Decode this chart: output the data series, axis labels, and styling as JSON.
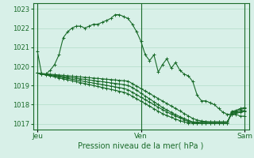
{
  "title": "",
  "xlabel": "Pression niveau de la mer( hPa )",
  "ylabel": "",
  "bg_color": "#d8f0e8",
  "grid_color": "#b0ddc8",
  "line_color": "#1a6b2a",
  "yticks": [
    1017,
    1018,
    1019,
    1020,
    1021,
    1022,
    1023
  ],
  "ylim": [
    1016.7,
    1023.3
  ],
  "xtick_labels": [
    "Jeu",
    "Ven",
    "Sam"
  ],
  "xtick_positions": [
    0,
    48,
    96
  ],
  "xlim": [
    -2,
    98
  ],
  "vlines": [
    0,
    48,
    96
  ],
  "series": [
    [
      1020.8,
      1019.6,
      1019.6,
      1019.8,
      1020.1,
      1020.6,
      1021.5,
      1021.8,
      1022.0,
      1022.1,
      1022.1,
      1022.0,
      1022.1,
      1022.2,
      1022.2,
      1022.3,
      1022.4,
      1022.5,
      1022.7,
      1022.7,
      1022.6,
      1022.5,
      1022.2,
      1021.8,
      1021.3,
      1020.6,
      1020.3,
      1020.6,
      1019.7,
      1020.1,
      1020.4,
      1019.9,
      1020.2,
      1019.8,
      1019.6,
      1019.5,
      1019.2,
      1018.5,
      1018.2,
      1018.2,
      1018.1,
      1018.0,
      1017.8,
      1017.6,
      1017.5,
      1017.5,
      1017.5,
      1017.4,
      1017.4
    ],
    [
      1019.65,
      1019.63,
      1019.61,
      1019.59,
      1019.57,
      1019.55,
      1019.53,
      1019.51,
      1019.49,
      1019.47,
      1019.45,
      1019.43,
      1019.41,
      1019.39,
      1019.37,
      1019.35,
      1019.33,
      1019.31,
      1019.29,
      1019.27,
      1019.25,
      1019.23,
      1019.1,
      1018.97,
      1018.84,
      1018.71,
      1018.58,
      1018.45,
      1018.32,
      1018.19,
      1018.06,
      1017.93,
      1017.8,
      1017.67,
      1017.54,
      1017.41,
      1017.28,
      1017.2,
      1017.15,
      1017.12,
      1017.1,
      1017.1,
      1017.1,
      1017.1,
      1017.1,
      1017.5,
      1017.55,
      1017.6,
      1017.65
    ],
    [
      1019.65,
      1019.62,
      1019.59,
      1019.56,
      1019.53,
      1019.5,
      1019.47,
      1019.44,
      1019.41,
      1019.38,
      1019.35,
      1019.32,
      1019.29,
      1019.26,
      1019.23,
      1019.2,
      1019.17,
      1019.14,
      1019.11,
      1019.08,
      1019.05,
      1019.0,
      1018.9,
      1018.75,
      1018.6,
      1018.45,
      1018.3,
      1018.15,
      1018.0,
      1017.85,
      1017.72,
      1017.6,
      1017.48,
      1017.38,
      1017.28,
      1017.18,
      1017.1,
      1017.1,
      1017.1,
      1017.1,
      1017.1,
      1017.1,
      1017.1,
      1017.1,
      1017.1,
      1017.55,
      1017.6,
      1017.65,
      1017.7
    ],
    [
      1019.65,
      1019.61,
      1019.57,
      1019.53,
      1019.49,
      1019.45,
      1019.41,
      1019.37,
      1019.33,
      1019.29,
      1019.25,
      1019.21,
      1019.17,
      1019.13,
      1019.09,
      1019.05,
      1019.01,
      1018.97,
      1018.93,
      1018.89,
      1018.85,
      1018.78,
      1018.65,
      1018.52,
      1018.39,
      1018.26,
      1018.13,
      1018.0,
      1017.87,
      1017.74,
      1017.62,
      1017.51,
      1017.41,
      1017.31,
      1017.21,
      1017.13,
      1017.07,
      1017.05,
      1017.04,
      1017.04,
      1017.04,
      1017.04,
      1017.04,
      1017.04,
      1017.04,
      1017.6,
      1017.65,
      1017.75,
      1017.8
    ],
    [
      1019.65,
      1019.6,
      1019.55,
      1019.5,
      1019.45,
      1019.4,
      1019.35,
      1019.3,
      1019.25,
      1019.2,
      1019.15,
      1019.1,
      1019.05,
      1019.0,
      1018.95,
      1018.9,
      1018.85,
      1018.8,
      1018.75,
      1018.7,
      1018.65,
      1018.57,
      1018.44,
      1018.31,
      1018.18,
      1018.05,
      1017.92,
      1017.79,
      1017.66,
      1017.53,
      1017.43,
      1017.34,
      1017.25,
      1017.17,
      1017.1,
      1017.05,
      1017.02,
      1017.02,
      1017.02,
      1017.02,
      1017.02,
      1017.02,
      1017.02,
      1017.02,
      1017.02,
      1017.65,
      1017.7,
      1017.8,
      1017.85
    ]
  ]
}
